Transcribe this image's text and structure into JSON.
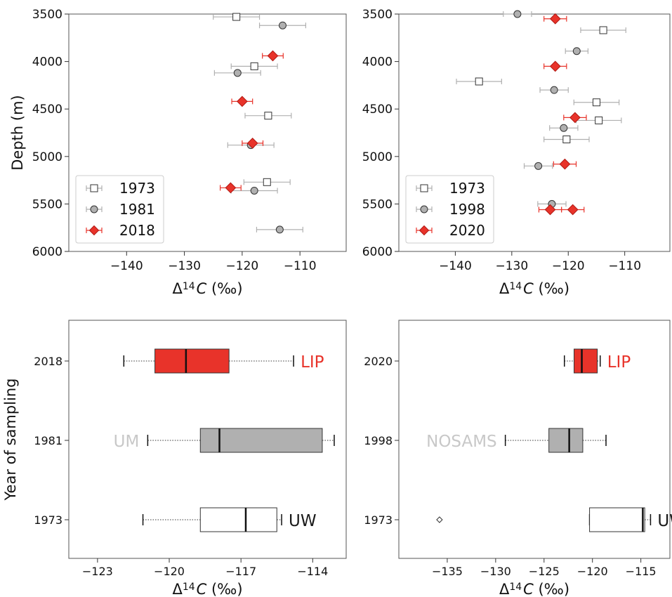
{
  "colors": {
    "red": "#e8332a",
    "red_dark": "#b21a14",
    "gray": "#b0b0b0",
    "gray_text": "#c8c8c8",
    "black": "#1a1a1a",
    "white": "#ffffff",
    "axis": "#555555"
  },
  "chart_data": [
    {
      "id": "profile_left",
      "type": "scatter",
      "xlabel": "Δ¹⁴C (‰)",
      "ylabel": "Depth (m)",
      "xlim": [
        -150,
        -102
      ],
      "ylim": [
        6000,
        3500
      ],
      "xticks": [
        -140,
        -130,
        -120,
        -110
      ],
      "yticks": [
        3500,
        4000,
        4500,
        5000,
        5500,
        6000
      ],
      "legend_position": "lower-left",
      "series": [
        {
          "name": "1973",
          "marker": "square",
          "color": "white",
          "points": [
            [
              -121,
              3530,
              4
            ],
            [
              -115.5,
              4570,
              4
            ],
            [
              -115.7,
              5270,
              4
            ],
            [
              -117.9,
              4050,
              4
            ]
          ]
        },
        {
          "name": "1981",
          "marker": "circle",
          "color": "gray",
          "points": [
            [
              -113,
              3620,
              4
            ],
            [
              -120.8,
              4120,
              4
            ],
            [
              -118.5,
              4880,
              4
            ],
            [
              -117.9,
              5360,
              4
            ],
            [
              -113.5,
              5770,
              4
            ]
          ]
        },
        {
          "name": "2018",
          "marker": "diamond",
          "color": "red",
          "points": [
            [
              -114.7,
              3940,
              1.8
            ],
            [
              -120,
              4420,
              1.8
            ],
            [
              -118.2,
              4860,
              1.8
            ],
            [
              -122,
              5330,
              1.8
            ]
          ]
        }
      ]
    },
    {
      "id": "profile_right",
      "type": "scatter",
      "xlabel": "Δ¹⁴C (‰)",
      "ylabel": "",
      "xlim": [
        -150,
        -102
      ],
      "ylim": [
        6000,
        3500
      ],
      "xticks": [
        -140,
        -130,
        -120,
        -110
      ],
      "yticks": [
        3500,
        4000,
        4500,
        5000,
        5500,
        6000
      ],
      "legend_position": "lower-left",
      "series": [
        {
          "name": "1973",
          "marker": "square",
          "color": "white",
          "points": [
            [
              -113.8,
              3670,
              4
            ],
            [
              -135.8,
              4210,
              4
            ],
            [
              -115,
              4430,
              4
            ],
            [
              -114.6,
              4620,
              4
            ],
            [
              -120.3,
              4820,
              4
            ]
          ]
        },
        {
          "name": "1998",
          "marker": "circle",
          "color": "gray",
          "points": [
            [
              -129,
              3500,
              2.5
            ],
            [
              -118.5,
              3890,
              2
            ],
            [
              -122.5,
              4300,
              2.5
            ],
            [
              -120.8,
              4700,
              2.5
            ],
            [
              -125.3,
              5100,
              2.5
            ],
            [
              -122.9,
              5500,
              2.5
            ]
          ]
        },
        {
          "name": "2020",
          "marker": "diamond",
          "color": "red",
          "points": [
            [
              -122.3,
              3550,
              2
            ],
            [
              -122.3,
              4050,
              2
            ],
            [
              -118.8,
              4590,
              2
            ],
            [
              -120.6,
              5080,
              2
            ],
            [
              -123.2,
              5560,
              2
            ],
            [
              -119.2,
              5560,
              2
            ]
          ]
        }
      ]
    },
    {
      "id": "box_left",
      "type": "box",
      "xlabel": "Δ¹⁴C (‰)",
      "ylabel": "Year of sampling",
      "xlim": [
        -124.2,
        -112.6
      ],
      "xticks": [
        -123,
        -120,
        -117,
        -114
      ],
      "categories": [
        "1973",
        "1981",
        "2018"
      ],
      "lab_labels": {
        "1973": "UW",
        "1981": "UM",
        "2018": "LIP"
      },
      "boxes": [
        {
          "category": "1973",
          "fill": "white",
          "label_color": "black",
          "label_side": "right",
          "whisker_low": -121.1,
          "q1": -118.7,
          "median": -116.8,
          "q3": -115.5,
          "whisker_high": -115.3
        },
        {
          "category": "1981",
          "fill": "gray",
          "label_color": "gray",
          "label_side": "left",
          "whisker_low": -120.9,
          "q1": -118.7,
          "median": -117.9,
          "q3": -113.6,
          "whisker_high": -113.1
        },
        {
          "category": "2018",
          "fill": "red",
          "label_color": "red",
          "label_side": "right",
          "whisker_low": -121.9,
          "q1": -120.6,
          "median": -119.3,
          "q3": -117.5,
          "whisker_high": -114.8
        }
      ]
    },
    {
      "id": "box_right",
      "type": "box",
      "xlabel": "Δ¹⁴C (‰)",
      "ylabel": "",
      "xlim": [
        -140,
        -112
      ],
      "xticks": [
        -135,
        -130,
        -125,
        -120,
        -115
      ],
      "categories": [
        "1973",
        "1998",
        "2020"
      ],
      "lab_labels": {
        "1973": "UW",
        "1998": "NOSAMS",
        "2020": "LIP"
      },
      "boxes": [
        {
          "category": "1973",
          "fill": "white",
          "label_color": "black",
          "label_side": "right",
          "whisker_low": -120.3,
          "q1": -120.3,
          "median": -114.8,
          "q3": -114.6,
          "whisker_high": -114.0,
          "outliers": [
            -135.8
          ]
        },
        {
          "category": "1998",
          "fill": "gray",
          "label_color": "gray",
          "label_side": "left",
          "whisker_low": -129.0,
          "q1": -124.5,
          "median": -122.4,
          "q3": -121.0,
          "whisker_high": -118.6
        },
        {
          "category": "2020",
          "fill": "red",
          "label_color": "red",
          "label_side": "right",
          "whisker_low": -122.9,
          "q1": -121.9,
          "median": -121.1,
          "q3": -119.5,
          "whisker_high": -119.2
        }
      ]
    }
  ]
}
